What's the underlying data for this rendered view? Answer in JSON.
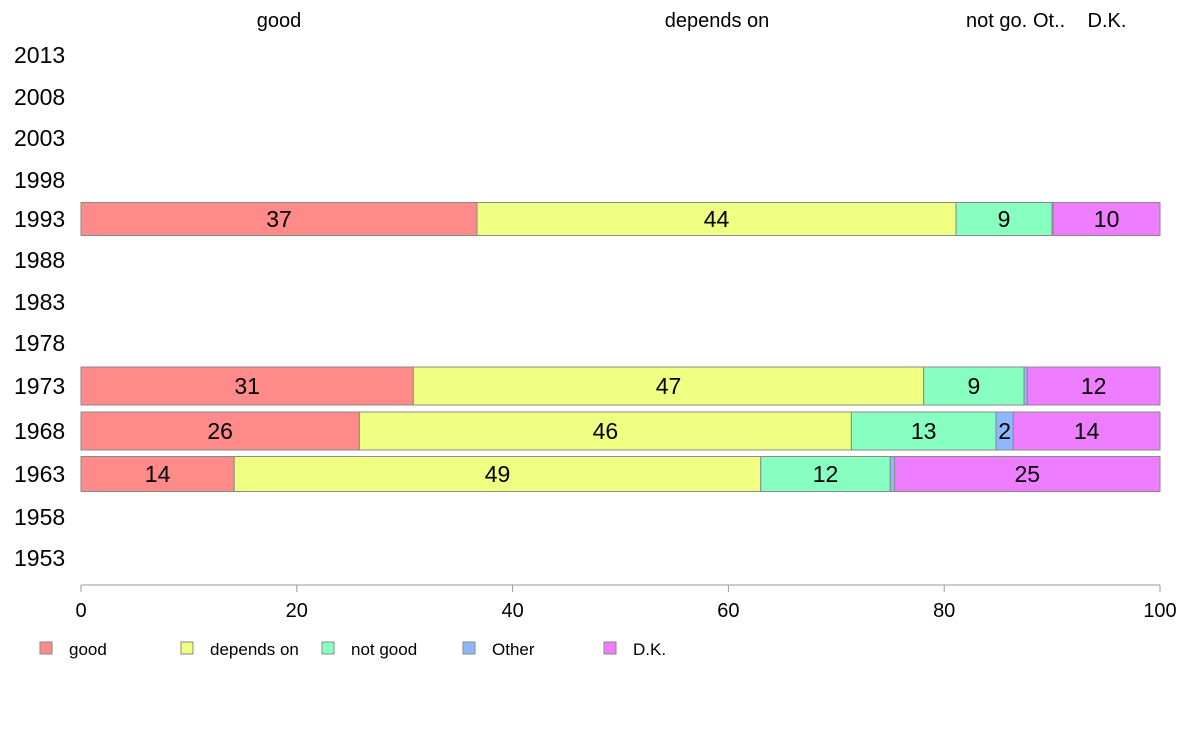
{
  "chart_data": {
    "type": "bar",
    "orientation": "horizontal",
    "stacked": true,
    "categories": [
      "2013",
      "2008",
      "2003",
      "1998",
      "1993",
      "1988",
      "1983",
      "1978",
      "1973",
      "1968",
      "1963",
      "1958",
      "1953"
    ],
    "series": [
      {
        "name": "good",
        "color": "#ff8a8a",
        "values": [
          null,
          null,
          null,
          null,
          36.7,
          null,
          null,
          null,
          30.8,
          25.8,
          14.2,
          null,
          null
        ],
        "labels": [
          "",
          "",
          "",
          "",
          "37",
          "",
          "",
          "",
          "31",
          "26",
          "14",
          "",
          ""
        ]
      },
      {
        "name": "depends on",
        "color": "#eeff82",
        "values": [
          null,
          null,
          null,
          null,
          44.4,
          null,
          null,
          null,
          47.3,
          45.6,
          48.8,
          null,
          null
        ],
        "labels": [
          "",
          "",
          "",
          "",
          "44",
          "",
          "",
          "",
          "47",
          "46",
          "49",
          "",
          ""
        ]
      },
      {
        "name": "not good",
        "color": "#87ffc0",
        "values": [
          null,
          null,
          null,
          null,
          8.9,
          null,
          null,
          null,
          9.3,
          13.4,
          12.0,
          null,
          null
        ],
        "labels": [
          "",
          "",
          "",
          "",
          "9",
          "",
          "",
          "",
          "9",
          "13",
          "12",
          "",
          ""
        ]
      },
      {
        "name": "Other",
        "color": "#8bb8ff",
        "values": [
          null,
          null,
          null,
          null,
          0.1,
          null,
          null,
          null,
          0.3,
          1.6,
          0.4,
          null,
          null
        ],
        "labels": [
          "",
          "",
          "",
          "",
          "",
          "",
          "",
          "",
          "",
          "2",
          "",
          "",
          ""
        ]
      },
      {
        "name": "D.K.",
        "color": "#ee7dff",
        "values": [
          null,
          null,
          null,
          null,
          9.9,
          null,
          null,
          null,
          12.3,
          13.6,
          24.6,
          null,
          null
        ],
        "labels": [
          "",
          "",
          "",
          "",
          "10",
          "",
          "",
          "",
          "12",
          "14",
          "25",
          "",
          ""
        ]
      }
    ],
    "top_labels": [
      "good",
      "depends on",
      "not go.",
      "Ot..",
      "D.K."
    ],
    "xlim": [
      0,
      100
    ],
    "xticks": [
      "0",
      "20",
      "40",
      "60",
      "80",
      "100"
    ],
    "grid": false,
    "legend_position": "bottom"
  }
}
